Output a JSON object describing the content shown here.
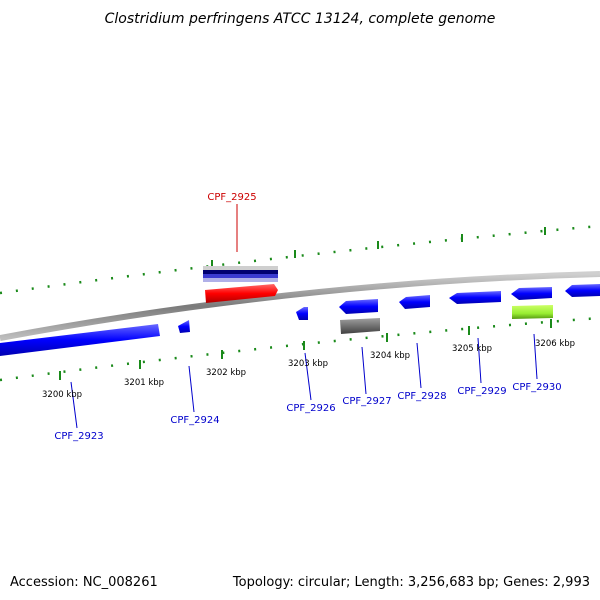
{
  "title": "Clostridium perfringens ATCC 13124, complete genome",
  "footer": {
    "accession": "Accession: NC_008261",
    "summary": "Topology: circular; Length: 3,256,683 bp; Genes: 2,993"
  },
  "scale": {
    "tick_labels": [
      "3200 kbp",
      "3201 kbp",
      "3202 kbp",
      "3203 kbp",
      "3204 kbp",
      "3205 kbp",
      "3206 kbp"
    ]
  },
  "genes": [
    {
      "id": "CPF_2923",
      "label": "CPF_2923",
      "color": "#0000dd"
    },
    {
      "id": "CPF_2924",
      "label": "CPF_2924",
      "color": "#0000dd"
    },
    {
      "id": "CPF_2925",
      "label": "CPF_2925",
      "color": "#dd0000"
    },
    {
      "id": "CPF_2926",
      "label": "CPF_2926",
      "color": "#0000dd"
    },
    {
      "id": "CPF_2927",
      "label": "CPF_2927",
      "color": "#0000dd"
    },
    {
      "id": "CPF_2928",
      "label": "CPF_2928",
      "color": "#0000dd"
    },
    {
      "id": "CPF_2929",
      "label": "CPF_2929",
      "color": "#0000dd"
    },
    {
      "id": "CPF_2930",
      "label": "CPF_2930",
      "color": "#0000dd"
    }
  ],
  "colors": {
    "backbone": "#888888",
    "forward_gene": "#0000ff",
    "highlight_gene": "#ff0000",
    "rna_gene": "#808080",
    "lime_gene": "#99ee33",
    "ticks": "#1a8a1a"
  }
}
